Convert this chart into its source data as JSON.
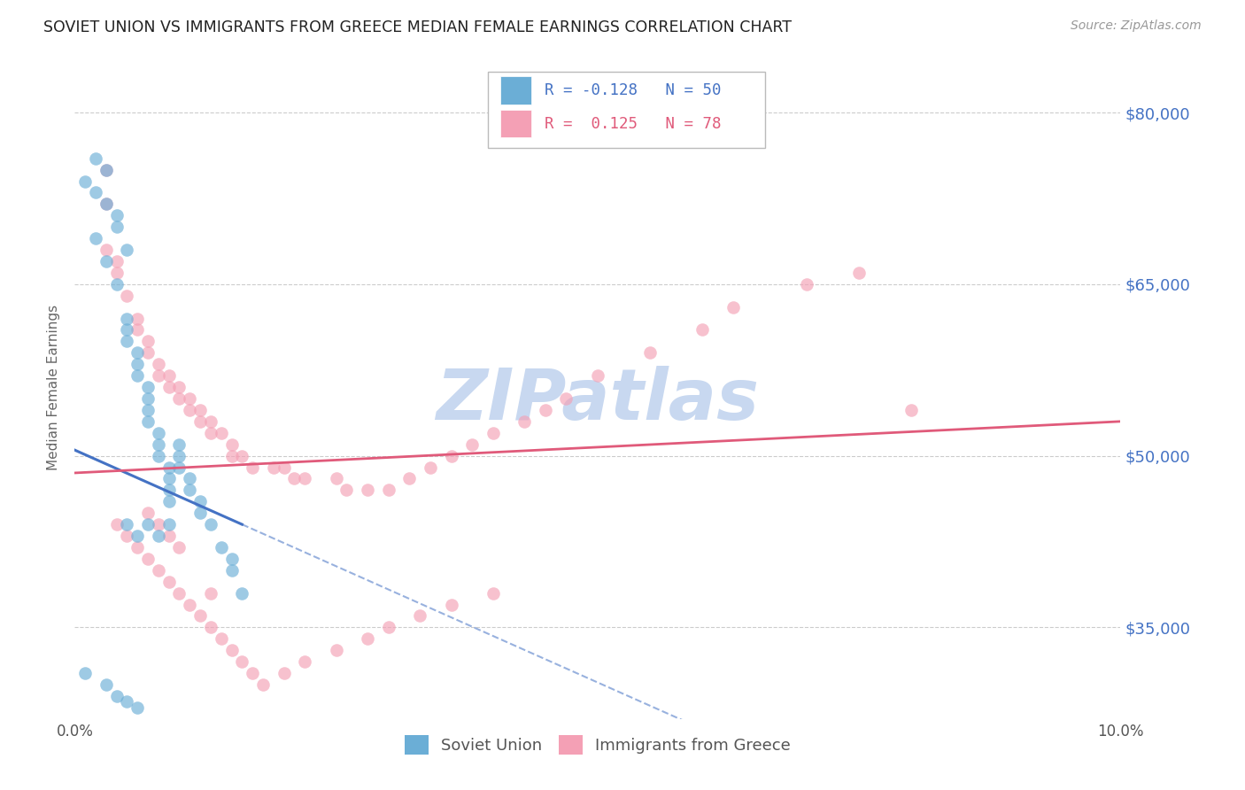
{
  "title": "SOVIET UNION VS IMMIGRANTS FROM GREECE MEDIAN FEMALE EARNINGS CORRELATION CHART",
  "source": "Source: ZipAtlas.com",
  "ylabel": "Median Female Earnings",
  "xlim": [
    0.0,
    0.1
  ],
  "ylim": [
    27000,
    85000
  ],
  "yticks": [
    35000,
    50000,
    65000,
    80000
  ],
  "ytick_labels": [
    "$35,000",
    "$50,000",
    "$65,000",
    "$80,000"
  ],
  "xticks": [
    0.0,
    0.02,
    0.04,
    0.06,
    0.08,
    0.1
  ],
  "xtick_labels": [
    "0.0%",
    "",
    "",
    "",
    "",
    "10.0%"
  ],
  "blue_color": "#6baed6",
  "pink_color": "#f4a0b5",
  "trend_blue": "#4472c4",
  "trend_pink": "#e05a7a",
  "watermark": "ZIPatlas",
  "watermark_color": "#c8d8f0",
  "background": "#ffffff",
  "grid_color": "#aaaaaa",
  "label_color": "#4472c4",
  "soviet_union_x": [
    0.002,
    0.003,
    0.003,
    0.004,
    0.004,
    0.005,
    0.004,
    0.005,
    0.005,
    0.005,
    0.006,
    0.006,
    0.006,
    0.007,
    0.007,
    0.007,
    0.007,
    0.008,
    0.008,
    0.008,
    0.009,
    0.009,
    0.009,
    0.009,
    0.01,
    0.01,
    0.01,
    0.011,
    0.011,
    0.012,
    0.012,
    0.013,
    0.014,
    0.015,
    0.015,
    0.016,
    0.001,
    0.002,
    0.002,
    0.003,
    0.005,
    0.006,
    0.007,
    0.008,
    0.009,
    0.001,
    0.003,
    0.004,
    0.005,
    0.006
  ],
  "soviet_union_y": [
    76000,
    75000,
    72000,
    71000,
    70000,
    68000,
    65000,
    62000,
    61000,
    60000,
    59000,
    58000,
    57000,
    56000,
    55000,
    54000,
    53000,
    52000,
    51000,
    50000,
    49000,
    48000,
    47000,
    46000,
    51000,
    50000,
    49000,
    48000,
    47000,
    46000,
    45000,
    44000,
    42000,
    41000,
    40000,
    38000,
    74000,
    73000,
    69000,
    67000,
    44000,
    43000,
    44000,
    43000,
    44000,
    31000,
    30000,
    29000,
    28500,
    28000
  ],
  "greece_x": [
    0.003,
    0.004,
    0.005,
    0.006,
    0.006,
    0.007,
    0.007,
    0.008,
    0.008,
    0.009,
    0.009,
    0.01,
    0.01,
    0.011,
    0.011,
    0.012,
    0.012,
    0.013,
    0.013,
    0.014,
    0.015,
    0.015,
    0.016,
    0.017,
    0.019,
    0.02,
    0.021,
    0.022,
    0.025,
    0.026,
    0.028,
    0.03,
    0.032,
    0.034,
    0.036,
    0.038,
    0.04,
    0.043,
    0.045,
    0.047,
    0.05,
    0.055,
    0.06,
    0.063,
    0.07,
    0.075,
    0.08,
    0.004,
    0.005,
    0.006,
    0.007,
    0.008,
    0.009,
    0.01,
    0.011,
    0.012,
    0.013,
    0.014,
    0.015,
    0.016,
    0.017,
    0.018,
    0.02,
    0.022,
    0.025,
    0.028,
    0.03,
    0.033,
    0.036,
    0.04,
    0.003,
    0.003,
    0.004,
    0.007,
    0.008,
    0.009,
    0.01,
    0.013
  ],
  "greece_y": [
    68000,
    66000,
    64000,
    62000,
    61000,
    60000,
    59000,
    58000,
    57000,
    57000,
    56000,
    56000,
    55000,
    55000,
    54000,
    54000,
    53000,
    53000,
    52000,
    52000,
    51000,
    50000,
    50000,
    49000,
    49000,
    49000,
    48000,
    48000,
    48000,
    47000,
    47000,
    47000,
    48000,
    49000,
    50000,
    51000,
    52000,
    53000,
    54000,
    55000,
    57000,
    59000,
    61000,
    63000,
    65000,
    66000,
    54000,
    44000,
    43000,
    42000,
    41000,
    40000,
    39000,
    38000,
    37000,
    36000,
    35000,
    34000,
    33000,
    32000,
    31000,
    30000,
    31000,
    32000,
    33000,
    34000,
    35000,
    36000,
    37000,
    38000,
    75000,
    72000,
    67000,
    45000,
    44000,
    43000,
    42000,
    38000
  ]
}
